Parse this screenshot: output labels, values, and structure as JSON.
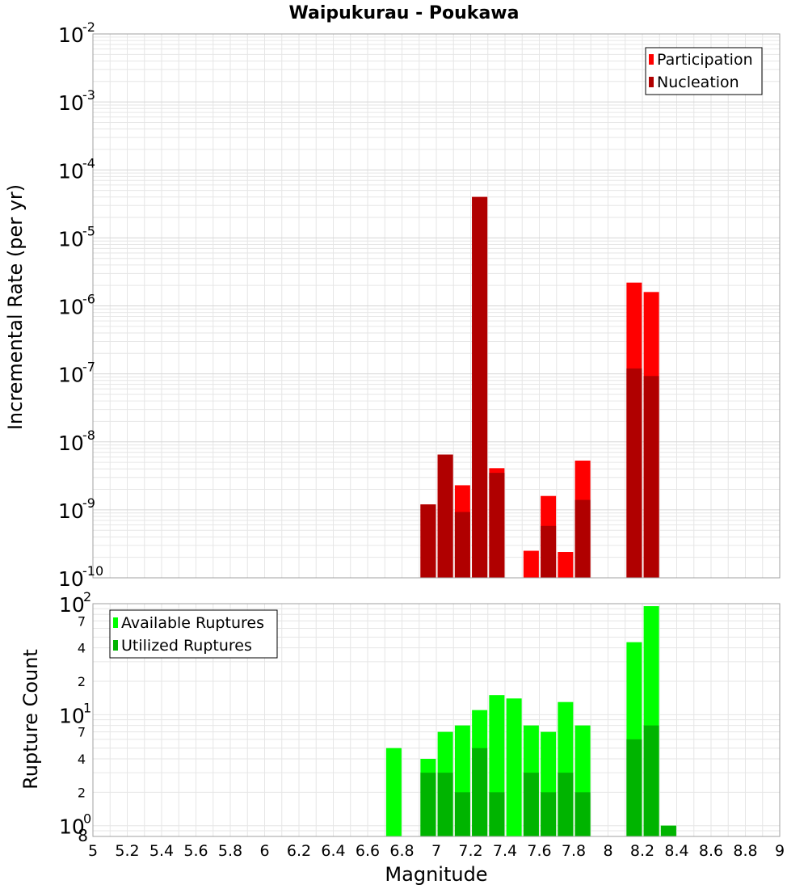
{
  "title": "Waipukurau - Poukawa",
  "x_label": "Magnitude",
  "x_ticks": [
    "5",
    "5.2",
    "5.4",
    "5.6",
    "5.8",
    "6",
    "6.2",
    "6.4",
    "6.6",
    "6.8",
    "7",
    "7.2",
    "7.4",
    "7.6",
    "7.8",
    "8",
    "8.2",
    "8.4",
    "8.6",
    "8.8",
    "9"
  ],
  "colors": {
    "participation": "#ff0000",
    "nucleation": "#b00000",
    "available": "#00ff00",
    "utilized": "#00b400",
    "grid": "#e6e6e6",
    "frame": "#a0a0a0"
  },
  "chart_data": [
    {
      "type": "bar",
      "title": "Waipukurau - Poukawa",
      "ylabel": "Incremental Rate (per yr)",
      "xlabel": "Magnitude",
      "xlim": [
        5,
        9
      ],
      "ylim": [
        1e-10,
        0.01
      ],
      "log_y": true,
      "grid": true,
      "legend": "top-right",
      "y_ticks": [
        {
          "base": "10",
          "exp": "-2"
        },
        {
          "base": "10",
          "exp": "-3"
        },
        {
          "base": "10",
          "exp": "-4"
        },
        {
          "base": "10",
          "exp": "-5"
        },
        {
          "base": "10",
          "exp": "-6"
        },
        {
          "base": "10",
          "exp": "-7"
        },
        {
          "base": "10",
          "exp": "-8"
        },
        {
          "base": "10",
          "exp": "-9"
        },
        {
          "base": "10",
          "exp": "-10"
        }
      ],
      "series": [
        {
          "name": "Participation",
          "x": [
            6.95,
            7.05,
            7.15,
            7.25,
            7.35,
            7.55,
            7.65,
            7.75,
            7.85,
            8.15,
            8.25
          ],
          "values": [
            1.2e-09,
            6.5e-09,
            2.3e-09,
            4e-05,
            4.1e-09,
            2.5e-10,
            1.6e-09,
            2.4e-10,
            5.3e-09,
            2.2e-06,
            1.6e-06
          ]
        },
        {
          "name": "Nucleation",
          "x": [
            6.95,
            7.05,
            7.15,
            7.25,
            7.35,
            7.55,
            7.65,
            7.75,
            7.85,
            8.15,
            8.25
          ],
          "values": [
            1.2e-09,
            6.5e-09,
            9.3e-10,
            4e-05,
            3.5e-09,
            1e-10,
            5.8e-10,
            1e-10,
            1.4e-09,
            1.2e-07,
            9.3e-08
          ]
        }
      ]
    },
    {
      "type": "bar",
      "ylabel": "Rupture Count",
      "xlabel": "Magnitude",
      "xlim": [
        5,
        9
      ],
      "ylim": [
        0.8,
        100
      ],
      "log_y": true,
      "grid": true,
      "legend": "top-left",
      "y_ticks": [
        {
          "value": 100,
          "base": "10",
          "exp": "2"
        },
        {
          "value": 70,
          "label": "7"
        },
        {
          "value": 40,
          "label": "4"
        },
        {
          "value": 20,
          "label": "2"
        },
        {
          "value": 10,
          "base": "10",
          "exp": "1"
        },
        {
          "value": 7,
          "label": "7"
        },
        {
          "value": 4,
          "label": "4"
        },
        {
          "value": 2,
          "label": "2"
        },
        {
          "value": 1,
          "base": "10",
          "exp": "0"
        },
        {
          "value": 0.8,
          "label": "8"
        }
      ],
      "series": [
        {
          "name": "Available Ruptures",
          "x": [
            6.75,
            6.95,
            7.05,
            7.15,
            7.25,
            7.35,
            7.45,
            7.55,
            7.65,
            7.75,
            7.85,
            8.15,
            8.25,
            8.35
          ],
          "values": [
            5,
            4,
            7,
            8,
            11,
            15,
            14,
            8,
            7,
            13,
            8,
            45,
            95,
            1
          ]
        },
        {
          "name": "Utilized Ruptures",
          "x": [
            6.95,
            7.05,
            7.15,
            7.25,
            7.35,
            7.55,
            7.65,
            7.75,
            7.85,
            8.15,
            8.25,
            8.35
          ],
          "values": [
            3,
            3,
            2,
            5,
            2,
            3,
            2,
            3,
            2,
            6,
            8,
            1
          ]
        }
      ]
    }
  ]
}
